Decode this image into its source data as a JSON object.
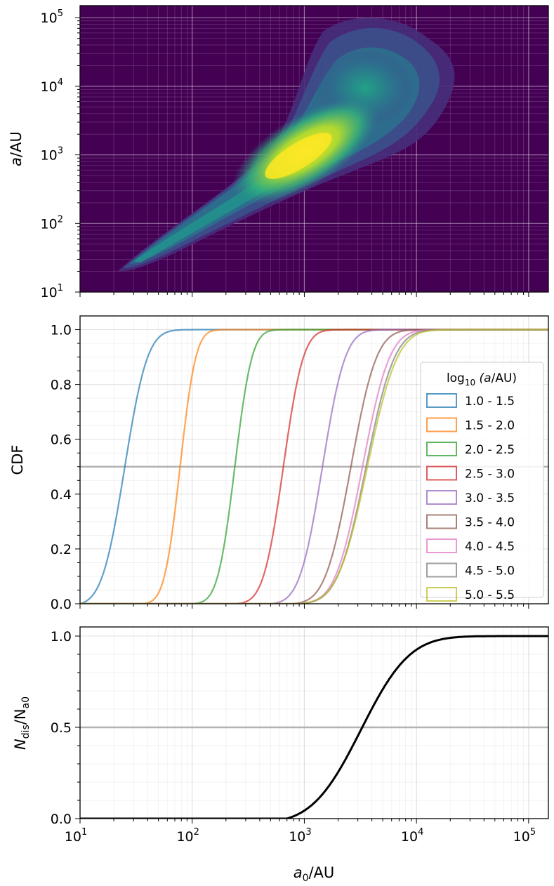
{
  "chart_data": [
    {
      "type": "heatmap",
      "title": "",
      "xlabel": "",
      "ylabel": "a/AU",
      "xscale": "log",
      "yscale": "log",
      "xlim": [
        10,
        150000
      ],
      "ylim": [
        10,
        150000
      ],
      "y_tick_labels": [
        "10",
        "10",
        "10",
        "10",
        "10"
      ],
      "y_tick_exponents": [
        "1",
        "2",
        "3",
        "4",
        "5"
      ],
      "y_tick_values": [
        10,
        100,
        1000,
        10000,
        100000
      ],
      "colormap": "viridis",
      "background_color": "#440154",
      "density_ridge": [
        {
          "a0": 17,
          "a": 22
        },
        {
          "a0": 100,
          "a": 120
        },
        {
          "a0": 700,
          "a": 700
        },
        {
          "a0": 2000,
          "a": 2000
        },
        {
          "a0": 4000,
          "a": 4500
        },
        {
          "a0": 5000,
          "a": 8000
        }
      ],
      "peak_density_at": {
        "a0": 1500,
        "a": 1300
      },
      "grid": true
    },
    {
      "type": "line",
      "title": "",
      "xlabel": "",
      "ylabel": "CDF",
      "xscale": "log",
      "xlim": [
        10,
        150000
      ],
      "ylim": [
        0,
        1.05
      ],
      "y_ticks": [
        "0.0",
        "0.2",
        "0.4",
        "0.6",
        "0.8",
        "1.0"
      ],
      "y_tick_values": [
        0,
        0.2,
        0.4,
        0.6,
        0.8,
        1.0
      ],
      "reference_line": 0.5,
      "legend": {
        "title_prefix": "log",
        "title_subscript": "10",
        "title_suffix": "(a/AU)",
        "location": "right"
      },
      "series": [
        {
          "name": "1.0 - 1.5",
          "color": "#1f77b4",
          "median": 25,
          "width": 0.16,
          "start": 10
        },
        {
          "name": "1.5 - 2.0",
          "color": "#ff7f0e",
          "median": 78,
          "width": 0.11,
          "start": 35
        },
        {
          "name": "2.0 - 2.5",
          "color": "#2ca02c",
          "median": 240,
          "width": 0.12,
          "start": 90
        },
        {
          "name": "2.5 - 3.0",
          "color": "#d62728",
          "median": 650,
          "width": 0.14,
          "start": 240
        },
        {
          "name": "3.0 - 3.5",
          "color": "#9467bd",
          "median": 1450,
          "width": 0.16,
          "start": 500
        },
        {
          "name": "3.5 - 4.0",
          "color": "#8c564b",
          "median": 2600,
          "width": 0.18,
          "start": 780
        },
        {
          "name": "4.0 - 4.5",
          "color": "#e377c2",
          "median": 3300,
          "width": 0.19,
          "start": 820
        },
        {
          "name": "4.5 - 5.0",
          "color": "#7f7f7f",
          "median": 3550,
          "width": 0.2,
          "start": 850
        },
        {
          "name": "5.0 - 5.5",
          "color": "#bcbd22",
          "median": 3650,
          "width": 0.21,
          "start": 870
        }
      ],
      "grid": true
    },
    {
      "type": "line",
      "title": "",
      "xlabel_base": "a",
      "xlabel_subscript": "0",
      "xlabel_suffix": "/AU",
      "ylabel_base": "N",
      "ylabel_sub1": "dis",
      "ylabel_mid": "/N",
      "ylabel_sub2": "a0",
      "xscale": "log",
      "xlim": [
        10,
        150000
      ],
      "ylim": [
        0,
        1.05
      ],
      "y_ticks": [
        "0.0",
        "0.5",
        "1.0"
      ],
      "y_tick_values": [
        0,
        0.5,
        1.0
      ],
      "x_tick_labels": [
        "10",
        "10",
        "10",
        "10",
        "10"
      ],
      "x_tick_exponents": [
        "1",
        "2",
        "3",
        "4",
        "5"
      ],
      "x_tick_values": [
        10,
        100,
        1000,
        10000,
        100000
      ],
      "reference_line": 0.5,
      "series": [
        {
          "name": "N_dis/N_a0",
          "color": "#000000",
          "median": 3200,
          "width": 0.34,
          "start": 700
        }
      ],
      "grid": true
    }
  ]
}
